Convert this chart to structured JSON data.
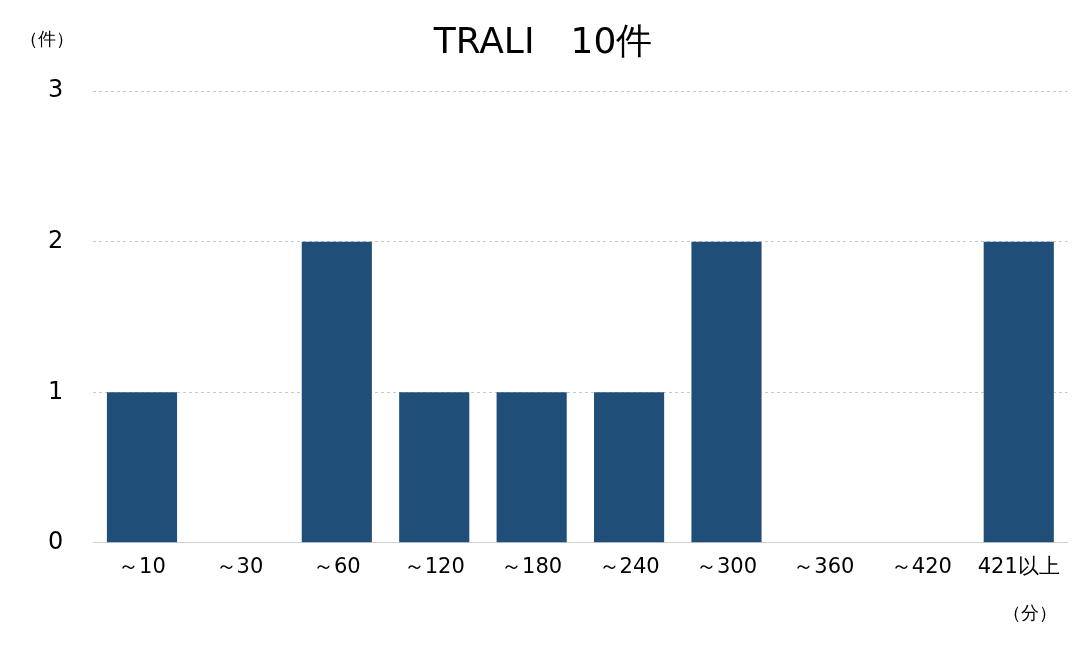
{
  "chart_data": {
    "type": "bar",
    "title": "TRALI　10件",
    "ylabel": "（件）",
    "xlabel": "（分）",
    "categories": [
      "～10",
      "～30",
      "～60",
      "～120",
      "～180",
      "～240",
      "～300",
      "～360",
      "～420",
      "421以上"
    ],
    "values": [
      1,
      0,
      2,
      1,
      1,
      1,
      2,
      0,
      0,
      2
    ],
    "color": "#1f4e79",
    "ylim": [
      0,
      3
    ],
    "yticks": [
      0,
      1,
      2,
      3
    ],
    "grid": "y",
    "legend": false
  }
}
